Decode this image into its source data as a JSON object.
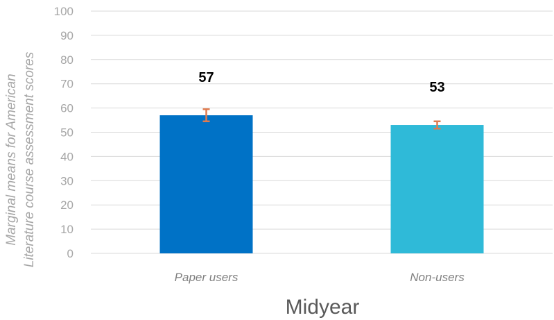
{
  "chart_data": {
    "type": "bar",
    "title": "",
    "xlabel": "Midyear",
    "ylabel_lines": [
      "Marginal means for American",
      "Literature course assessment scores"
    ],
    "categories": [
      "Paper users",
      "Non-users"
    ],
    "values": [
      57,
      53
    ],
    "data_labels": [
      "57",
      "53"
    ],
    "error_bars": [
      {
        "low": 54.5,
        "high": 59.5
      },
      {
        "low": 51.5,
        "high": 54.5
      }
    ],
    "colors": [
      "#0072c6",
      "#2fbad8"
    ],
    "error_bar_color": "#e07b4f",
    "ylim": [
      0,
      100
    ],
    "yticks": [
      "0",
      "10",
      "20",
      "30",
      "40",
      "50",
      "60",
      "70",
      "80",
      "90",
      "100"
    ],
    "grid": true,
    "legend": "none"
  }
}
